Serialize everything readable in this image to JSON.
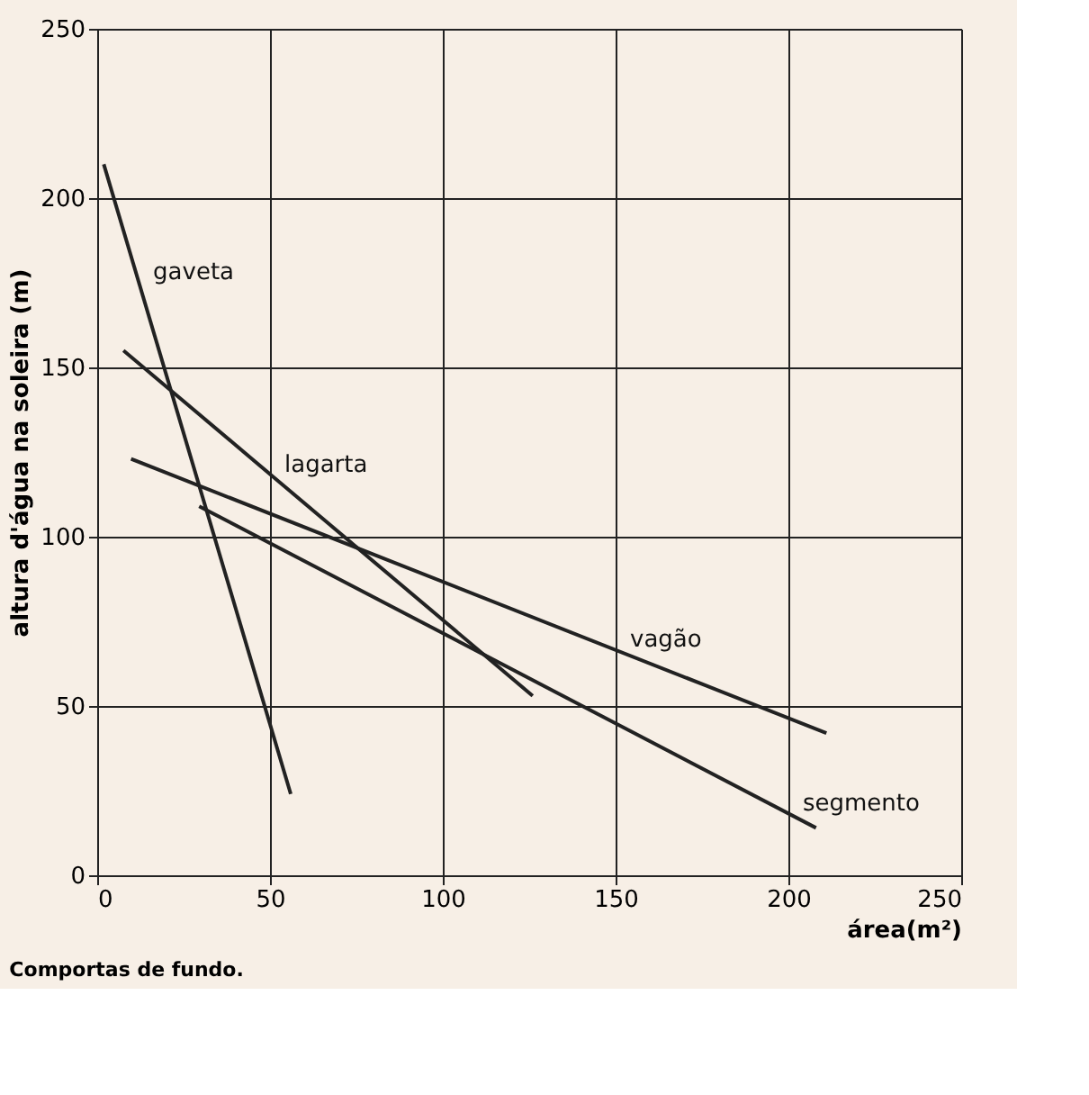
{
  "chart_data": {
    "type": "line",
    "xlabel": "área(m²)",
    "ylabel": "altura d'água na soleira (m)",
    "xlim": [
      0,
      250
    ],
    "xticks": [
      0,
      50,
      100,
      150,
      200,
      250
    ],
    "ylim": [
      0,
      250
    ],
    "yticks": [
      0,
      50,
      100,
      150,
      200,
      250
    ],
    "grid": true,
    "marker": "none",
    "line_style": "solid",
    "series": [
      {
        "color": "#222222",
        "x": [
          1.9,
          56
        ],
        "values": [
          210,
          24
        ]
      },
      {
        "color": "#222222",
        "x": [
          7.6,
          126
        ],
        "values": [
          155,
          53
        ]
      },
      {
        "color": "#222222",
        "x": [
          9.8,
          211
        ],
        "values": [
          123,
          42
        ]
      },
      {
        "color": "#222222",
        "x": [
          29.5,
          208
        ],
        "values": [
          109,
          14
        ]
      }
    ],
    "annotations": [
      {
        "text": "gaveta",
        "x": 12,
        "y": 175
      },
      {
        "text": "lagarta",
        "x": 50,
        "y": 118
      },
      {
        "text": "vagão",
        "x": 150,
        "y": 66.5
      },
      {
        "text": "segmento",
        "x": 200,
        "y": 18
      },
      "Comportas de fundo."
    ]
  }
}
